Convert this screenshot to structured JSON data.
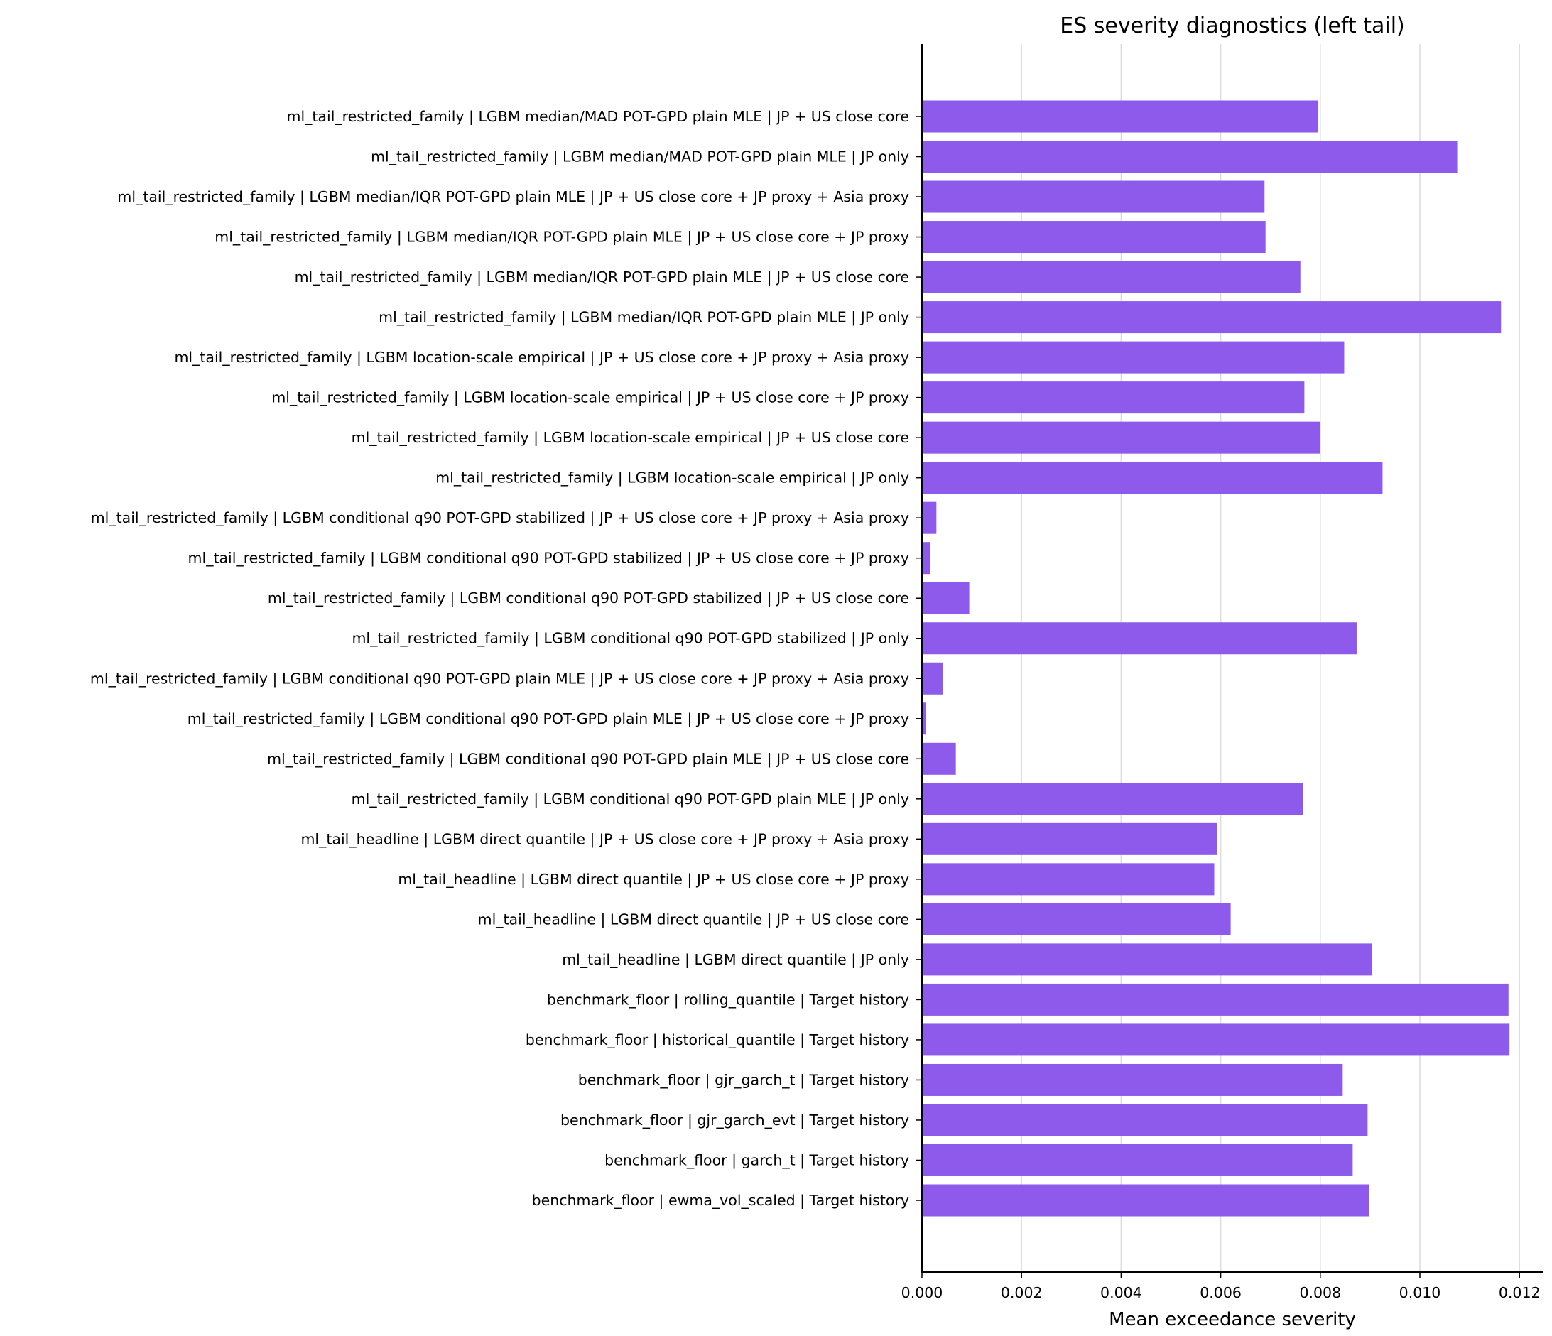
{
  "chart_data": {
    "type": "bar",
    "orientation": "horizontal",
    "title": "ES severity diagnostics (left tail)",
    "xlabel": "Mean exceedance severity",
    "ylabel": "",
    "xlim": [
      0,
      0.0124
    ],
    "xticks": [
      "0.000",
      "0.002",
      "0.004",
      "0.006",
      "0.008",
      "0.010",
      "0.012"
    ],
    "grid": "vertical",
    "bar_color": "#8e5aeb",
    "categories": [
      "ml_tail_restricted_family | LGBM median/MAD POT-GPD plain MLE | JP + US close core",
      "ml_tail_restricted_family | LGBM median/MAD POT-GPD plain MLE | JP only",
      "ml_tail_restricted_family | LGBM median/IQR POT-GPD plain MLE | JP + US close core + JP proxy + Asia proxy",
      "ml_tail_restricted_family | LGBM median/IQR POT-GPD plain MLE | JP + US close core + JP proxy",
      "ml_tail_restricted_family | LGBM median/IQR POT-GPD plain MLE | JP + US close core",
      "ml_tail_restricted_family | LGBM median/IQR POT-GPD plain MLE | JP only",
      "ml_tail_restricted_family | LGBM location-scale empirical | JP + US close core + JP proxy + Asia proxy",
      "ml_tail_restricted_family | LGBM location-scale empirical | JP + US close core + JP proxy",
      "ml_tail_restricted_family | LGBM location-scale empirical | JP + US close core",
      "ml_tail_restricted_family | LGBM location-scale empirical | JP only",
      "ml_tail_restricted_family | LGBM conditional q90 POT-GPD stabilized | JP + US close core + JP proxy + Asia proxy",
      "ml_tail_restricted_family | LGBM conditional q90 POT-GPD stabilized | JP + US close core + JP proxy",
      "ml_tail_restricted_family | LGBM conditional q90 POT-GPD stabilized | JP + US close core",
      "ml_tail_restricted_family | LGBM conditional q90 POT-GPD stabilized | JP only",
      "ml_tail_restricted_family | LGBM conditional q90 POT-GPD plain MLE | JP + US close core + JP proxy + Asia proxy",
      "ml_tail_restricted_family | LGBM conditional q90 POT-GPD plain MLE | JP + US close core + JP proxy",
      "ml_tail_restricted_family | LGBM conditional q90 POT-GPD plain MLE | JP + US close core",
      "ml_tail_restricted_family | LGBM conditional q90 POT-GPD plain MLE | JP only",
      "ml_tail_headline | LGBM direct quantile | JP + US close core + JP proxy + Asia proxy",
      "ml_tail_headline | LGBM direct quantile | JP + US close core + JP proxy",
      "ml_tail_headline | LGBM direct quantile | JP + US close core",
      "ml_tail_headline | LGBM direct quantile | JP only",
      "benchmark_floor | rolling_quantile | Target history",
      "benchmark_floor | historical_quantile | Target history",
      "benchmark_floor | gjr_garch_t | Target history",
      "benchmark_floor | gjr_garch_evt | Target history",
      "benchmark_floor | garch_t | Target history",
      "benchmark_floor | ewma_vol_scaled | Target history"
    ],
    "values": [
      0.00795,
      0.01075,
      0.00688,
      0.0069,
      0.0076,
      0.01163,
      0.00848,
      0.00768,
      0.008,
      0.00925,
      0.00029,
      0.00016,
      0.00095,
      0.00873,
      0.00042,
      8e-05,
      0.00068,
      0.00766,
      0.00593,
      0.00587,
      0.0062,
      0.00903,
      0.01178,
      0.0118,
      0.00845,
      0.00895,
      0.00865,
      0.00898
    ]
  }
}
